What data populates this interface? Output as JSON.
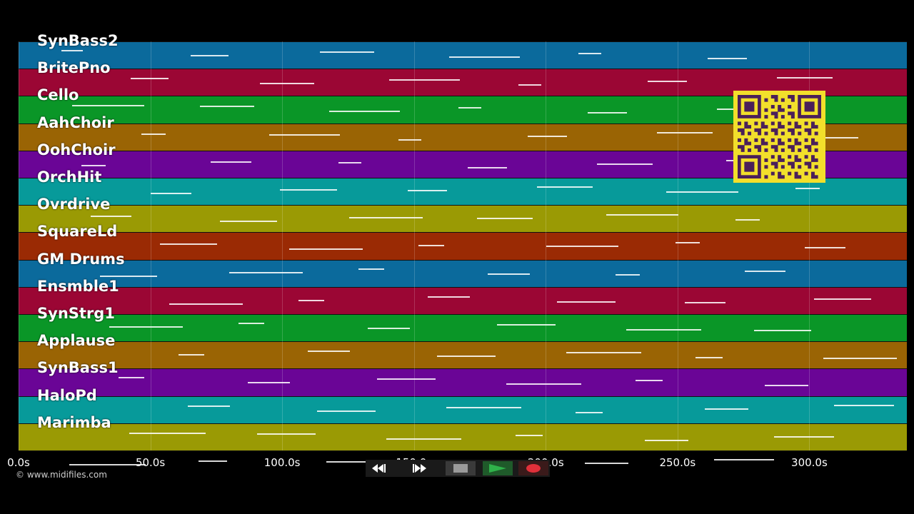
{
  "lanes": [
    {
      "label": "SynBass2",
      "color": "#0b6a9c"
    },
    {
      "label": "BritePno",
      "color": "#9b0634"
    },
    {
      "label": "Cello",
      "color": "#0a9627"
    },
    {
      "label": "AahChoir",
      "color": "#9a6404"
    },
    {
      "label": "OohChoir",
      "color": "#6a0596"
    },
    {
      "label": "OrchHit",
      "color": "#079a9a"
    },
    {
      "label": "Ovrdrive",
      "color": "#9a9a04"
    },
    {
      "label": "SquareLd",
      "color": "#9a2a04"
    },
    {
      "label": "GM Drums",
      "color": "#0b6a9c"
    },
    {
      "label": "Ensmble1",
      "color": "#9b0634"
    },
    {
      "label": "SynStrg1",
      "color": "#0a9627"
    },
    {
      "label": "Applause",
      "color": "#9a6404"
    },
    {
      "label": "SynBass1",
      "color": "#6a0596"
    },
    {
      "label": "HaloPd",
      "color": "#079a9a"
    },
    {
      "label": "Marimba",
      "color": "#9a9a04"
    },
    {
      "label": "",
      "color": "#9a9a04"
    }
  ],
  "time_axis": {
    "ticks": [
      "0.0s",
      "50.0s",
      "100.0s",
      "150.0s",
      "200.0s",
      "250.0s",
      "300.0s"
    ],
    "tick_seconds": [
      0,
      50,
      100,
      150,
      200,
      250,
      300
    ],
    "max_seconds": 337
  },
  "credit": "© www.midifiles.com",
  "transport": {
    "buttons": [
      {
        "name": "rewind-button",
        "icon": "rewind-icon"
      },
      {
        "name": "fast-forward-button",
        "icon": "fast-forward-icon"
      },
      {
        "name": "stop-button",
        "icon": "stop-icon"
      },
      {
        "name": "play-button",
        "icon": "play-icon"
      },
      {
        "name": "record-button",
        "icon": "record-icon"
      }
    ]
  },
  "colors": {
    "background": "#000000",
    "qr": "#f2df2b",
    "qr_dark": "#4a1f5a",
    "record": "#e0303a",
    "play": "#2fb24a"
  }
}
